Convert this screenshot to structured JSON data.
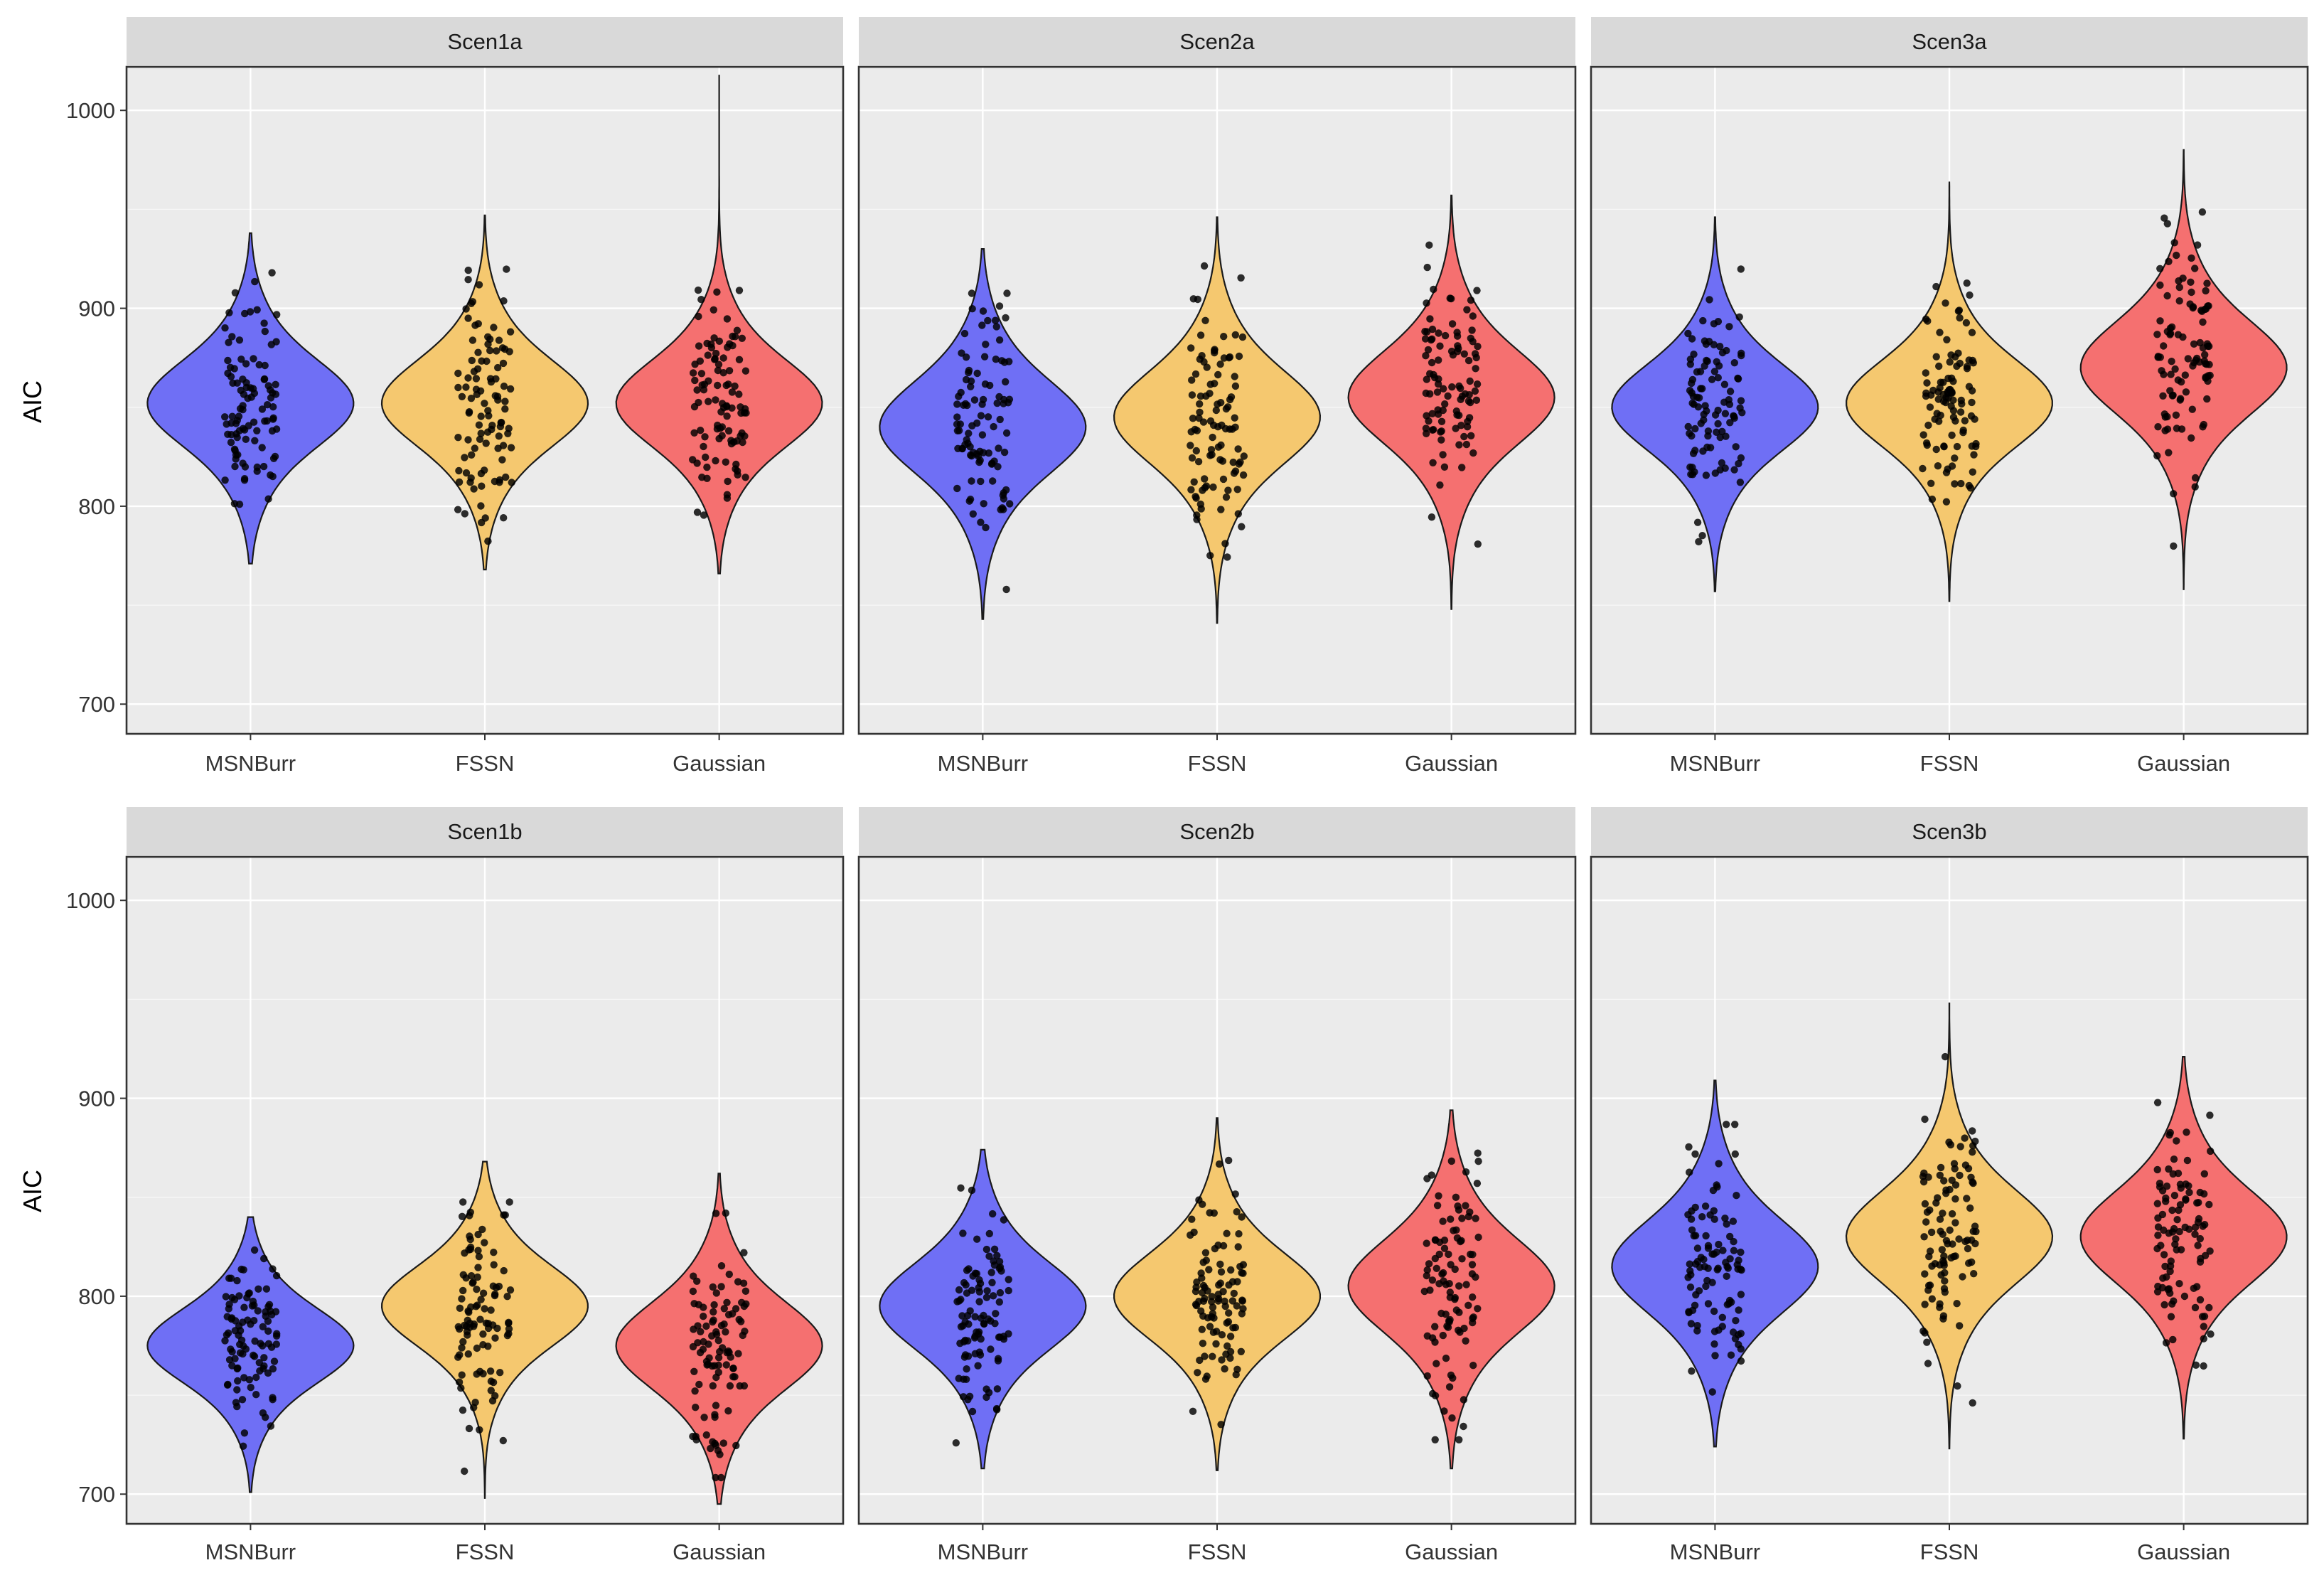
{
  "chart_data": {
    "type": "violin",
    "title": "",
    "xlabel": "",
    "ylabel": "AIC",
    "ylim": [
      685,
      1022
    ],
    "yticks": [
      700,
      800,
      900,
      1000
    ],
    "categories": [
      "MSNBurr",
      "FSSN",
      "Gaussian"
    ],
    "colors": {
      "MSNBurr": "#6f6ff5",
      "FSSN": "#f5c86f",
      "Gaussian": "#f57070"
    },
    "grid": true,
    "legend": "none",
    "facets": [
      {
        "label": "Scen1a",
        "series": [
          {
            "name": "MSNBurr",
            "min": 771,
            "max": 938,
            "mean": 852,
            "sd": 28
          },
          {
            "name": "FSSN",
            "min": 768,
            "max": 947,
            "mean": 852,
            "sd": 28
          },
          {
            "name": "Gaussian",
            "min": 766,
            "max": 1018,
            "mean": 852,
            "sd": 28
          }
        ]
      },
      {
        "label": "Scen2a",
        "series": [
          {
            "name": "MSNBurr",
            "min": 743,
            "max": 930,
            "mean": 840,
            "sd": 30
          },
          {
            "name": "FSSN",
            "min": 741,
            "max": 946,
            "mean": 845,
            "sd": 30
          },
          {
            "name": "Gaussian",
            "min": 748,
            "max": 957,
            "mean": 855,
            "sd": 30
          }
        ]
      },
      {
        "label": "Scen3a",
        "series": [
          {
            "name": "MSNBurr",
            "min": 757,
            "max": 946,
            "mean": 850,
            "sd": 28
          },
          {
            "name": "FSSN",
            "min": 752,
            "max": 964,
            "mean": 852,
            "sd": 28
          },
          {
            "name": "Gaussian",
            "min": 758,
            "max": 980,
            "mean": 870,
            "sd": 30
          }
        ]
      },
      {
        "label": "Scen1b",
        "series": [
          {
            "name": "MSNBurr",
            "min": 701,
            "max": 840,
            "mean": 775,
            "sd": 24
          },
          {
            "name": "FSSN",
            "min": 698,
            "max": 868,
            "mean": 795,
            "sd": 26
          },
          {
            "name": "Gaussian",
            "min": 695,
            "max": 862,
            "mean": 775,
            "sd": 28
          }
        ]
      },
      {
        "label": "Scen2b",
        "series": [
          {
            "name": "MSNBurr",
            "min": 713,
            "max": 874,
            "mean": 795,
            "sd": 28
          },
          {
            "name": "FSSN",
            "min": 712,
            "max": 890,
            "mean": 800,
            "sd": 28
          },
          {
            "name": "Gaussian",
            "min": 713,
            "max": 894,
            "mean": 805,
            "sd": 30
          }
        ]
      },
      {
        "label": "Scen3b",
        "series": [
          {
            "name": "MSNBurr",
            "min": 724,
            "max": 909,
            "mean": 815,
            "sd": 30
          },
          {
            "name": "FSSN",
            "min": 723,
            "max": 948,
            "mean": 830,
            "sd": 30
          },
          {
            "name": "Gaussian",
            "min": 728,
            "max": 921,
            "mean": 830,
            "sd": 30
          }
        ]
      }
    ]
  }
}
